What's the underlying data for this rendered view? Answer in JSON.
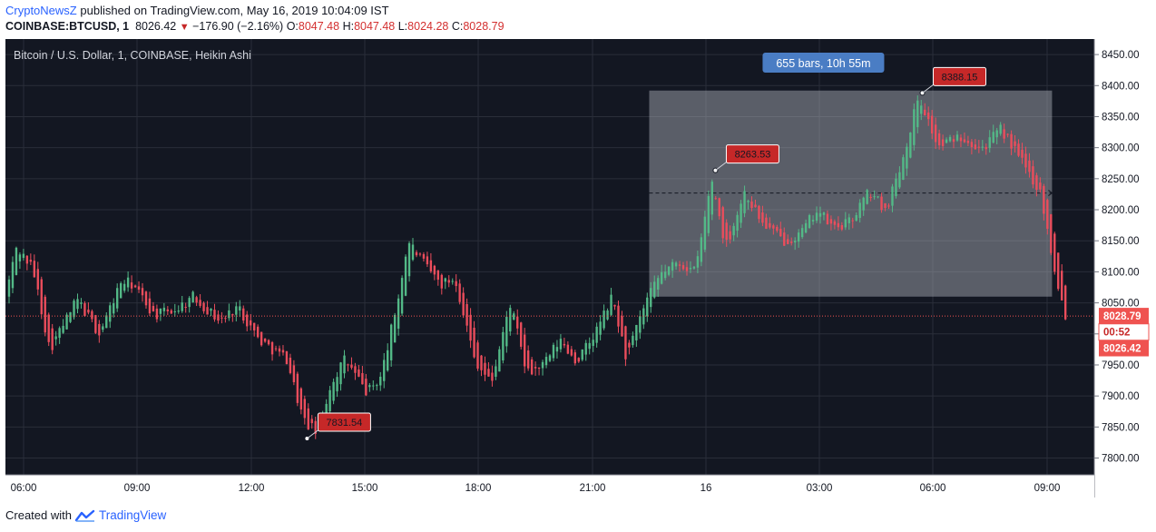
{
  "header": {
    "author": "CryptoNewsZ",
    "published_text": "published on TradingView.com, May 16, 2019 10:04:09 IST",
    "symbol": "COINBASE:BTCUSD, 1",
    "last": "8026.42",
    "change": "−176.90 (−2.16%)",
    "open_label": "O:",
    "open": "8047.48",
    "high_label": "H:",
    "high": "8047.48",
    "low_label": "L:",
    "low": "8024.28",
    "close_label": "C:",
    "close": "8028.79"
  },
  "chart_title": "Bitcoin / U.S. Dollar, 1, COINBASE, Heikin Ashi",
  "footer": {
    "created_with": "Created with",
    "brand": "TradingView"
  },
  "colors": {
    "background": "#131722",
    "grid": "#2a2e39",
    "up": "#53b987",
    "down": "#eb4d5c",
    "selection": "#b2b5be",
    "bars_badge": "#4a7dc4",
    "price_label": "#c62828",
    "axis_text": "#131722"
  },
  "chart_data": {
    "type": "candlestick",
    "chart_style": "Heikin Ashi",
    "interval": "1",
    "y_axis": {
      "ticks": [
        "8450.00",
        "8400.00",
        "8350.00",
        "8300.00",
        "8250.00",
        "8200.00",
        "8150.00",
        "8100.00",
        "8050.00",
        "8000.00",
        "7950.00",
        "7900.00",
        "7850.00",
        "7800.00"
      ],
      "ylim": [
        7780,
        8460
      ]
    },
    "x_axis": {
      "ticks": [
        "06:00",
        "09:00",
        "12:00",
        "15:00",
        "18:00",
        "21:00",
        "16",
        "03:00",
        "06:00",
        "09:00"
      ]
    },
    "series": [
      {
        "t": 0,
        "p": 8060
      },
      {
        "t": 0.4,
        "p": 8140
      },
      {
        "t": 1,
        "p": 8105
      },
      {
        "t": 1.6,
        "p": 7975
      },
      {
        "t": 2.6,
        "p": 8055
      },
      {
        "t": 3.4,
        "p": 8000
      },
      {
        "t": 4.2,
        "p": 8085
      },
      {
        "t": 4.6,
        "p": 8080
      },
      {
        "t": 5.4,
        "p": 8030
      },
      {
        "t": 6.2,
        "p": 8040
      },
      {
        "t": 6.8,
        "p": 8060
      },
      {
        "t": 7.8,
        "p": 8020
      },
      {
        "t": 8.4,
        "p": 8045
      },
      {
        "t": 9.2,
        "p": 7990
      },
      {
        "t": 10.2,
        "p": 7960
      },
      {
        "t": 10.8,
        "p": 7860
      },
      {
        "t": 11.3,
        "p": 7840
      },
      {
        "t": 11.8,
        "p": 7920
      },
      {
        "t": 12.3,
        "p": 7960
      },
      {
        "t": 13.1,
        "p": 7905
      },
      {
        "t": 13.6,
        "p": 7930
      },
      {
        "t": 14.2,
        "p": 8050
      },
      {
        "t": 14.6,
        "p": 8150
      },
      {
        "t": 15.2,
        "p": 8110
      },
      {
        "t": 15.8,
        "p": 8080
      },
      {
        "t": 16.3,
        "p": 8090
      },
      {
        "t": 17.0,
        "p": 7960
      },
      {
        "t": 17.6,
        "p": 7920
      },
      {
        "t": 18.3,
        "p": 8050
      },
      {
        "t": 18.9,
        "p": 7935
      },
      {
        "t": 19.5,
        "p": 7950
      },
      {
        "t": 20.1,
        "p": 7990
      },
      {
        "t": 20.7,
        "p": 7955
      },
      {
        "t": 21.3,
        "p": 7995
      },
      {
        "t": 22.0,
        "p": 8060
      },
      {
        "t": 22.5,
        "p": 7960
      },
      {
        "t": 23.2,
        "p": 8050
      },
      {
        "t": 23.8,
        "p": 8100
      },
      {
        "t": 24.4,
        "p": 8115
      },
      {
        "t": 25.0,
        "p": 8100
      },
      {
        "t": 25.6,
        "p": 8250
      },
      {
        "t": 26.1,
        "p": 8140
      },
      {
        "t": 26.8,
        "p": 8230
      },
      {
        "t": 27.4,
        "p": 8180
      },
      {
        "t": 28.2,
        "p": 8150
      },
      {
        "t": 28.8,
        "p": 8160
      },
      {
        "t": 29.4,
        "p": 8200
      },
      {
        "t": 30.0,
        "p": 8170
      },
      {
        "t": 30.6,
        "p": 8180
      },
      {
        "t": 31.3,
        "p": 8230
      },
      {
        "t": 31.9,
        "p": 8200
      },
      {
        "t": 32.5,
        "p": 8280
      },
      {
        "t": 33.1,
        "p": 8385
      },
      {
        "t": 33.8,
        "p": 8300
      },
      {
        "t": 34.6,
        "p": 8320
      },
      {
        "t": 35.4,
        "p": 8300
      },
      {
        "t": 36.1,
        "p": 8330
      },
      {
        "t": 36.8,
        "p": 8280
      },
      {
        "t": 37.5,
        "p": 8230
      },
      {
        "t": 38.0,
        "p": 8110
      },
      {
        "t": 38.4,
        "p": 8030
      }
    ],
    "last_price_line": 8028.79,
    "annotations": [
      {
        "label": "7831.54",
        "t": 10.8,
        "p": 7831.54
      },
      {
        "label": "8263.53",
        "t": 25.6,
        "p": 8263.53
      },
      {
        "label": "8388.15",
        "t": 33.1,
        "p": 8388.15
      }
    ],
    "range_selection": {
      "label": "655 bars, 10h 55m",
      "t_start": 23.2,
      "t_end": 37.8,
      "p_low": 8060,
      "p_high": 8392,
      "mid_price": 8227
    },
    "price_labels": [
      {
        "text": "8028.79",
        "p": 8028.79
      },
      {
        "text": "00:52",
        "p": 8003
      },
      {
        "text": "8026.42",
        "p": 7977
      }
    ]
  }
}
